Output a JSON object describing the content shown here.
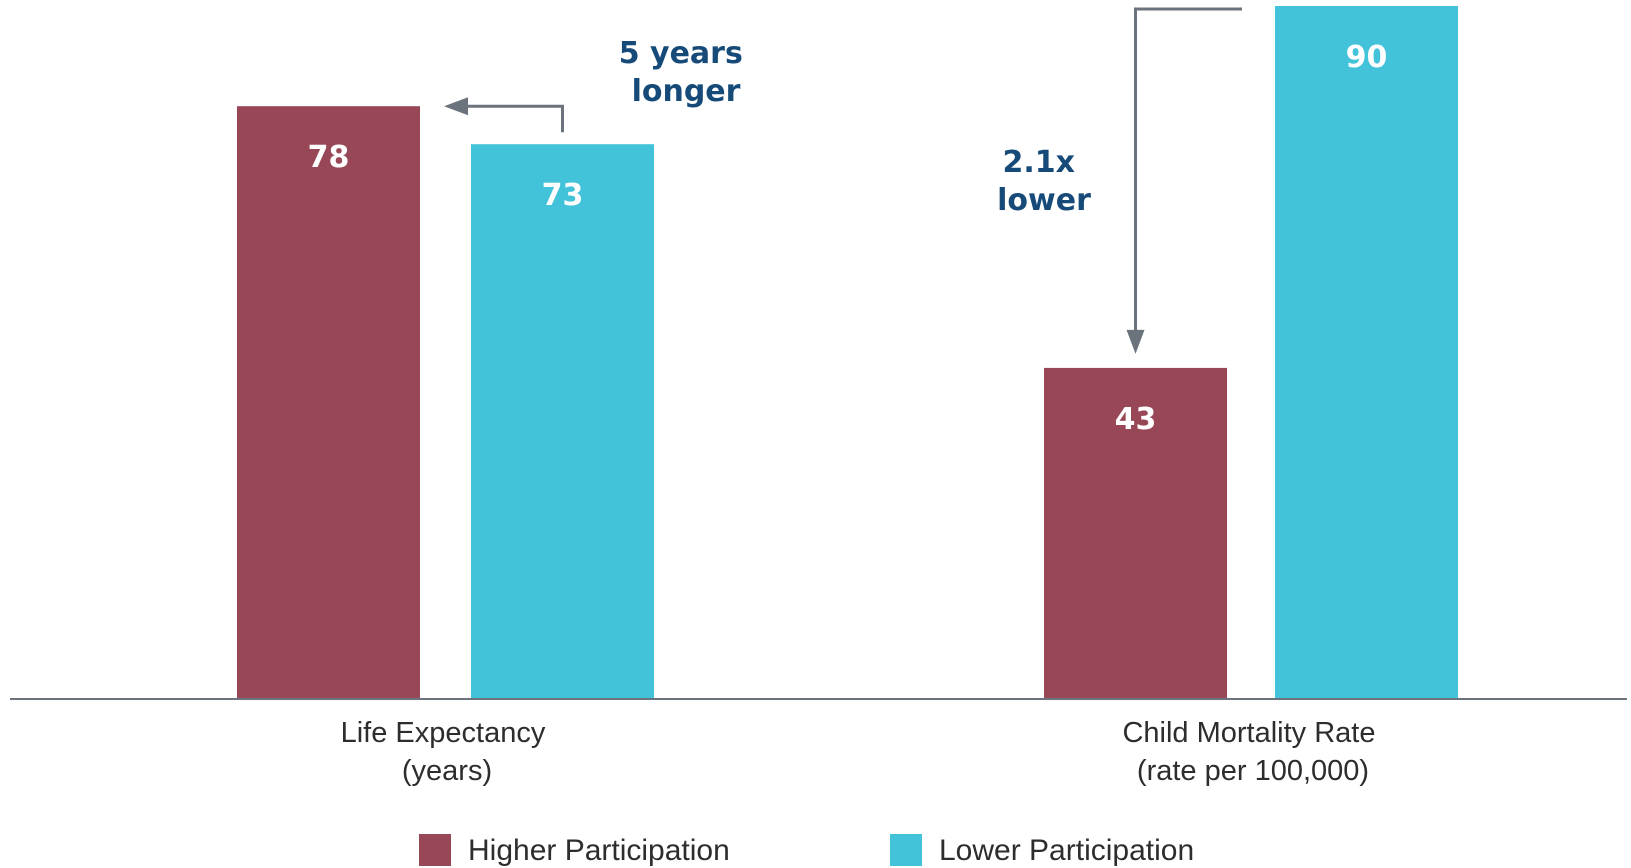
{
  "chart_data": {
    "type": "bar",
    "title": "",
    "categories": [
      [
        "Life Expectancy",
        "(years)"
      ],
      [
        "Child Mortality Rate",
        "(rate per 100,000)"
      ]
    ],
    "series": [
      {
        "name": "Higher Participation",
        "color": "#974755",
        "values": [
          78,
          43
        ]
      },
      {
        "name": "Lower Participation",
        "color": "#43c3da",
        "values": [
          73,
          90
        ]
      }
    ],
    "value_labels": [
      [
        "78",
        "43"
      ],
      [
        "73",
        "90"
      ]
    ],
    "annotations": [
      {
        "lines": [
          "5 years",
          "longer"
        ],
        "category": 0
      },
      {
        "lines": [
          "2.1x",
          "lower"
        ],
        "category": 1
      }
    ],
    "legend_position": "bottom",
    "grid": false,
    "arrow_color": "#6b737c",
    "axis_color": "#6b737c"
  }
}
